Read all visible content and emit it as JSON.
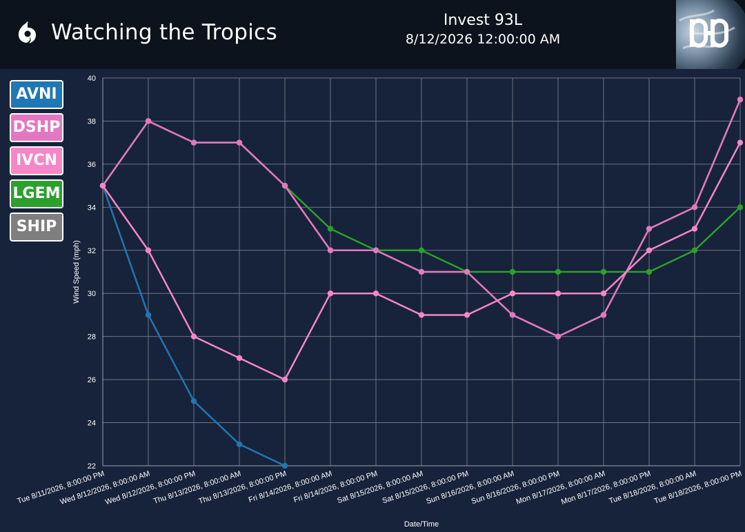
{
  "header": {
    "title": "Watching the Tropics",
    "storm_name": "Invest 93L",
    "datetime": "8/12/2026 12:00:00 AM",
    "logo_icon": "dd-globe-logo-icon",
    "brand_icon": "hurricane-icon"
  },
  "legend": [
    {
      "label": "AVNI",
      "color": "#1f77b4"
    },
    {
      "label": "DSHP",
      "color": "#e377c2"
    },
    {
      "label": "IVCN",
      "color": "#f786c8"
    },
    {
      "label": "LGEM",
      "color": "#2ca02c"
    },
    {
      "label": "SHIP",
      "color": "#7f7f7f"
    }
  ],
  "chart_data": {
    "type": "line",
    "xlabel": "Date/Time",
    "ylabel": "Wind Speed (mph)",
    "ylim": [
      22,
      40
    ],
    "yticks": [
      22,
      24,
      26,
      28,
      30,
      32,
      34,
      36,
      38,
      40
    ],
    "grid": true,
    "categories": [
      "Tue 8/11/2026, 8:00:00 PM",
      "Wed 8/12/2026, 8:00:00 AM",
      "Wed 8/12/2026, 8:00:00 PM",
      "Thu 8/13/2026, 8:00:00 AM",
      "Thu 8/13/2026, 8:00:00 PM",
      "Fri 8/14/2026, 8:00:00 AM",
      "Fri 8/14/2026, 8:00:00 PM",
      "Sat 8/15/2026, 8:00:00 AM",
      "Sat 8/15/2026, 8:00:00 PM",
      "Sun 8/16/2026, 8:00:00 AM",
      "Sun 8/16/2026, 8:00:00 PM",
      "Mon 8/17/2026, 8:00:00 AM",
      "Mon 8/17/2026, 8:00:00 PM",
      "Tue 8/18/2026, 8:00:00 AM",
      "Tue 8/18/2026, 8:00:00 PM"
    ],
    "series": [
      {
        "name": "LGEM",
        "color": "#2ca02c",
        "values": [
          35,
          38,
          37,
          37,
          35,
          33,
          32,
          32,
          31,
          31,
          31,
          31,
          31,
          32,
          34
        ]
      },
      {
        "name": "SHIP",
        "color": "#7f7f7f",
        "values": [
          35,
          38,
          37,
          37,
          35,
          32,
          32,
          31,
          31,
          29,
          28,
          29,
          33,
          34,
          39
        ]
      },
      {
        "name": "AVNI",
        "color": "#1f77b4",
        "values": [
          35,
          29,
          25,
          23,
          22,
          null,
          null,
          null,
          null,
          null,
          null,
          null,
          null,
          null,
          null
        ]
      },
      {
        "name": "DSHP",
        "color": "#e377c2",
        "values": [
          35,
          38,
          37,
          37,
          35,
          32,
          32,
          31,
          31,
          29,
          28,
          29,
          33,
          34,
          39
        ]
      },
      {
        "name": "IVCN",
        "color": "#f786c8",
        "values": [
          35,
          32,
          28,
          27,
          26,
          30,
          30,
          29,
          29,
          30,
          30,
          30,
          32,
          33,
          37
        ]
      }
    ]
  }
}
